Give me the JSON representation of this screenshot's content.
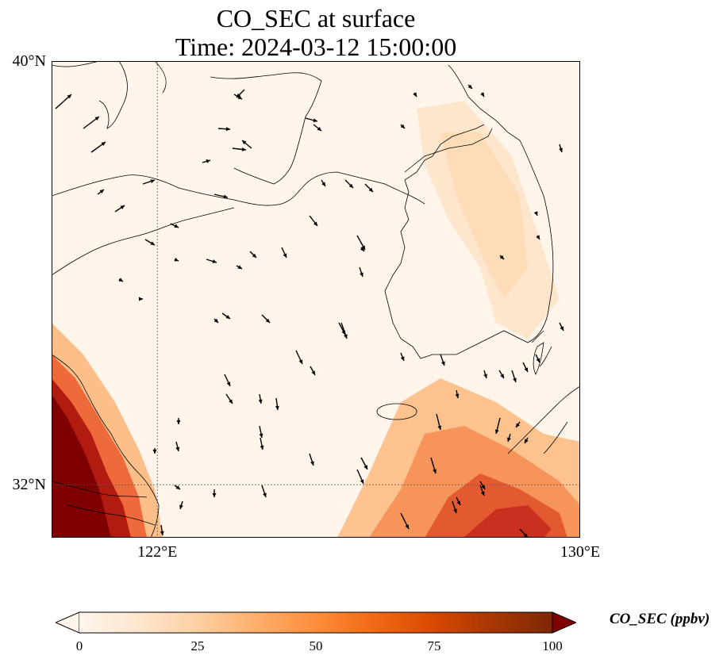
{
  "title": {
    "line1": "CO_SEC at surface",
    "line2": "Time: 2024-03-12 15:00:00"
  },
  "map": {
    "projection": "PlateCarree",
    "lon_range": [
      120,
      130
    ],
    "lat_range": [
      31,
      40
    ],
    "lat_ticks": [
      {
        "value": 40,
        "label": "40°N"
      },
      {
        "value": 32,
        "label": "32°N"
      }
    ],
    "lon_ticks": [
      {
        "value": 122,
        "label": "122°E"
      },
      {
        "value": 130,
        "label": "130°E"
      }
    ],
    "gridlines": [
      {
        "type": "lon",
        "value": 122
      },
      {
        "type": "lat",
        "value": 32
      }
    ],
    "field": "CO_SEC",
    "wind_vectors": true,
    "coastlines": true
  },
  "colorbar": {
    "label": "CO_SEC (ppbv)",
    "min": 0,
    "max": 100,
    "extend": "both",
    "ticks": [
      "0",
      "25",
      "50",
      "75",
      "100"
    ],
    "colormap": [
      "#fff5eb",
      "#fee6ce",
      "#fdd0a2",
      "#fdae6b",
      "#fd8d3c",
      "#f16913",
      "#d94801",
      "#a63603",
      "#7f2704"
    ]
  },
  "chart_data": {
    "type": "heatmap",
    "title": "CO_SEC at surface",
    "subtitle": "Time: 2024-03-12 15:00:00",
    "xlabel": "",
    "ylabel": "",
    "xlim": [
      120,
      130
    ],
    "ylim": [
      31,
      40
    ],
    "legend": "bottom",
    "high_value_regions": [
      {
        "name": "southwest corner",
        "lon": [
          120,
          121.5
        ],
        "lat": [
          31,
          33.5
        ],
        "value": 100
      },
      {
        "name": "south-central plume",
        "lon": [
          125.5,
          129.5
        ],
        "lat": [
          31,
          33.3
        ],
        "value": 70
      },
      {
        "name": "korea diagonal band",
        "lon": [
          126.5,
          128.5
        ],
        "lat": [
          34,
          38.5
        ],
        "value": 12
      }
    ]
  }
}
